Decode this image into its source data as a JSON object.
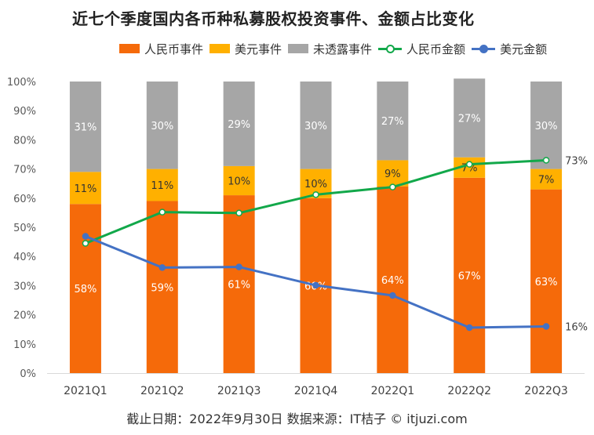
{
  "title": "近七个季度国内各币种私募股权投资事件、金额占比变化",
  "legend": {
    "rmb_events": "人民币事件",
    "usd_events": "美元事件",
    "undisclosed_events": "未透露事件",
    "rmb_amount": "人民币金额",
    "usd_amount": "美元金额"
  },
  "footer": "截止日期：2022年9月30日 数据来源：IT桔子 © itjuzi.com",
  "colors": {
    "rmb_events": "#f56a0a",
    "usd_events": "#ffb000",
    "undisclosed_events": "#a6a6a6",
    "rmb_amount": "#12a84a",
    "usd_amount": "#4472c4"
  },
  "chart_data": {
    "type": "bar",
    "stacked": true,
    "title": "近七个季度国内各币种私募股权投资事件、金额占比变化",
    "categories": [
      "2021Q1",
      "2021Q2",
      "2021Q3",
      "2021Q4",
      "2022Q1",
      "2022Q2",
      "2022Q3"
    ],
    "ylim": [
      0,
      100
    ],
    "yticks": [
      "0%",
      "10%",
      "20%",
      "30%",
      "40%",
      "50%",
      "60%",
      "70%",
      "80%",
      "90%",
      "100%"
    ],
    "unit": "%",
    "legend_position": "top",
    "bar_series": [
      {
        "name": "人民币事件",
        "values": [
          58,
          59,
          61,
          60,
          64,
          67,
          63
        ],
        "labels": [
          "58%",
          "59%",
          "61%",
          "60%",
          "64%",
          "67%",
          "63%"
        ],
        "color": "#f56a0a"
      },
      {
        "name": "美元事件",
        "values": [
          11,
          11,
          10,
          10,
          9,
          7,
          7
        ],
        "labels": [
          "11%",
          "11%",
          "10%",
          "10%",
          "9%",
          "7%",
          "7%"
        ],
        "color": "#ffb000"
      },
      {
        "name": "未透露事件",
        "values": [
          31,
          30,
          29,
          30,
          27,
          27,
          30
        ],
        "labels": [
          "31%",
          "30%",
          "29%",
          "30%",
          "27%",
          "27%",
          "30%"
        ],
        "color": "#a6a6a6"
      }
    ],
    "line_series": [
      {
        "name": "人民币金额",
        "values": [
          44.5,
          55.2,
          54.9,
          61.2,
          63.8,
          71.6,
          73
        ],
        "end_label": "73%",
        "color": "#12a84a"
      },
      {
        "name": "美元金额",
        "values": [
          46.9,
          36.2,
          36.4,
          30.1,
          26.6,
          15.6,
          16
        ],
        "end_label": "16%",
        "color": "#4472c4"
      }
    ]
  }
}
